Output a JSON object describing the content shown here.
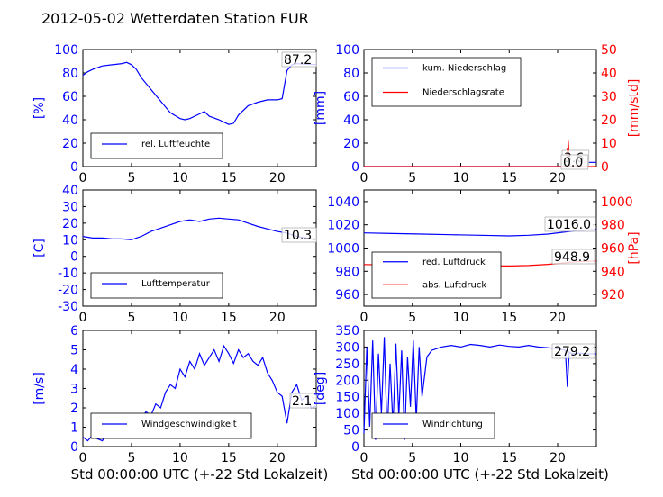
{
  "title": "2012-05-02 Wetterdaten Station FUR",
  "chart_data": [
    {
      "id": "humidity",
      "type": "line",
      "xlim": [
        0,
        24
      ],
      "ylim": [
        0,
        100
      ],
      "xticks": [
        0,
        5,
        10,
        15,
        20
      ],
      "yticks": [
        0,
        20,
        40,
        60,
        80,
        100
      ],
      "ylabel": "[%]",
      "ylabel_color": "#0000ff",
      "annotation": "87.2",
      "legend_placement": "lower-left",
      "series": [
        {
          "name": "rel. Luftfeuchte",
          "color": "#0000ff",
          "x": [
            0,
            0.5,
            1,
            2,
            3,
            4,
            4.5,
            5,
            5.5,
            6,
            7,
            8,
            9,
            10,
            10.5,
            11,
            12,
            12.5,
            13,
            14,
            15,
            15.5,
            16,
            17,
            18,
            19,
            20,
            20.5,
            21,
            21.5,
            22,
            23,
            24
          ],
          "y": [
            78,
            81,
            83,
            86,
            87,
            88,
            89,
            87,
            83,
            76,
            66,
            56,
            46,
            41,
            40,
            41,
            45,
            47,
            43,
            40,
            36,
            37,
            44,
            52,
            55,
            57,
            57,
            58,
            82,
            87,
            88,
            87.5,
            87.2
          ]
        }
      ]
    },
    {
      "id": "precip",
      "type": "line",
      "xlim": [
        0,
        24
      ],
      "ylim": [
        0,
        100
      ],
      "y2lim": [
        0,
        50
      ],
      "xticks": [
        0,
        5,
        10,
        15,
        20
      ],
      "yticks": [
        0,
        20,
        40,
        60,
        80,
        100
      ],
      "y2ticks": [
        0,
        10,
        20,
        30,
        40,
        50
      ],
      "ylabel": "[mm]",
      "y2label": "[mm/std]",
      "ylabel_color": "#0000ff",
      "y2label_color": "#ff0000",
      "annotations": [
        "3.6",
        "0.0"
      ],
      "legend_placement": "upper-left",
      "series": [
        {
          "name": "kum. Niederschlag",
          "color": "#0000ff",
          "axis": "left",
          "x": [
            0,
            20.8,
            21,
            21.3,
            24
          ],
          "y": [
            0,
            0,
            1.5,
            3.6,
            3.6
          ]
        },
        {
          "name": "Niederschlagsrate",
          "color": "#ff0000",
          "axis": "right",
          "x": [
            0,
            20.9,
            21,
            21.05,
            21.1,
            21.2,
            21.3,
            24
          ],
          "y": [
            0,
            0,
            8,
            2,
            11,
            4,
            0,
            0
          ]
        }
      ]
    },
    {
      "id": "temperature",
      "type": "line",
      "xlim": [
        0,
        24
      ],
      "ylim": [
        -30,
        40
      ],
      "xticks": [
        0,
        5,
        10,
        15,
        20
      ],
      "yticks": [
        -30,
        -20,
        -10,
        0,
        10,
        20,
        30,
        40
      ],
      "ylabel": "[C]",
      "ylabel_color": "#0000ff",
      "annotation": "10.3",
      "legend_placement": "lower-left",
      "series": [
        {
          "name": "Lufttemperatur",
          "color": "#0000ff",
          "x": [
            0,
            1,
            2,
            3,
            4,
            5,
            6,
            7,
            8,
            9,
            10,
            11,
            12,
            13,
            14,
            15,
            16,
            17,
            18,
            19,
            20,
            21,
            22,
            23,
            24
          ],
          "y": [
            12,
            11,
            11,
            10.5,
            10.5,
            10,
            12,
            15,
            17,
            19,
            21,
            22,
            21,
            22.5,
            23,
            22.5,
            22,
            20,
            18,
            16.5,
            15,
            14,
            12,
            11,
            10.3
          ]
        }
      ]
    },
    {
      "id": "pressure",
      "type": "line",
      "xlim": [
        0,
        24
      ],
      "ylim": [
        950,
        1050
      ],
      "y2lim": [
        910,
        1010
      ],
      "xticks": [
        0,
        5,
        10,
        15,
        20
      ],
      "yticks": [
        960,
        980,
        1000,
        1020,
        1040
      ],
      "y2ticks": [
        920,
        940,
        960,
        980,
        1000
      ],
      "ylabel": "",
      "y2label": "[hPa]",
      "y2label_color": "#ff0000",
      "annotations": [
        "1016.0",
        "948.9"
      ],
      "legend_placement": "lower-left",
      "series": [
        {
          "name": "red. Luftdruck",
          "color": "#0000ff",
          "axis": "left",
          "x": [
            0,
            3,
            6,
            9,
            12,
            15,
            17,
            19,
            21,
            22,
            24
          ],
          "y": [
            1013,
            1012.5,
            1012,
            1011.5,
            1011,
            1010.5,
            1011,
            1012,
            1014,
            1015,
            1016
          ]
        },
        {
          "name": "abs. Luftdruck",
          "color": "#ff0000",
          "axis": "right",
          "x": [
            0,
            3,
            6,
            9,
            12,
            15,
            17,
            19,
            21,
            22,
            24
          ],
          "y": [
            945.8,
            945.4,
            945.2,
            945,
            944.8,
            944.6,
            945,
            946,
            947.5,
            948.2,
            948.9
          ]
        }
      ]
    },
    {
      "id": "windspeed",
      "type": "line",
      "xlim": [
        0,
        24
      ],
      "ylim": [
        0,
        6
      ],
      "xticks": [
        0,
        5,
        10,
        15,
        20
      ],
      "yticks": [
        0,
        1,
        2,
        3,
        4,
        5,
        6
      ],
      "ylabel": "[m/s]",
      "ylabel_color": "#0000ff",
      "xlabel": "Std 00:00:00 UTC (+-22 Std Lokalzeit)",
      "annotation": "2.1",
      "legend_placement": "lower-left",
      "series": [
        {
          "name": "Windgeschwindigkeit",
          "color": "#0000ff",
          "x": [
            0,
            0.5,
            1,
            1.5,
            2,
            2.5,
            3,
            3.5,
            4,
            4.5,
            5,
            5.5,
            6,
            6.5,
            7,
            7.5,
            8,
            8.5,
            9,
            9.5,
            10,
            10.5,
            11,
            11.5,
            12,
            12.5,
            13,
            13.5,
            14,
            14.5,
            15,
            15.5,
            16,
            16.5,
            17,
            17.5,
            18,
            18.5,
            19,
            19.5,
            20,
            20.5,
            21,
            21.5,
            22,
            22.5,
            23,
            23.5,
            24
          ],
          "y": [
            0.5,
            0.3,
            0.6,
            0.4,
            0.3,
            0.7,
            0.5,
            0.8,
            1.0,
            0.7,
            0.9,
            1.2,
            1.5,
            1.8,
            1.6,
            2.2,
            2.0,
            2.8,
            3.2,
            3.0,
            4.0,
            3.6,
            4.4,
            4.0,
            4.8,
            4.2,
            4.6,
            5.0,
            4.4,
            5.2,
            4.8,
            4.3,
            5.0,
            4.6,
            4.8,
            4.4,
            4.2,
            4.6,
            3.8,
            3.4,
            2.8,
            2.6,
            1.2,
            2.8,
            3.2,
            2.4,
            2.6,
            2.0,
            2.1
          ]
        }
      ]
    },
    {
      "id": "winddir",
      "type": "line",
      "xlim": [
        0,
        24
      ],
      "ylim": [
        0,
        350
      ],
      "xticks": [
        0,
        5,
        10,
        15,
        20
      ],
      "yticks": [
        0,
        50,
        100,
        150,
        200,
        250,
        300,
        350
      ],
      "ylabel": "[deg]",
      "ylabel_color": "#0000ff",
      "xlabel": "Std 00:00:00 UTC (+-22 Std Lokalzeit)",
      "annotation": "279.2",
      "legend_placement": "lower-left",
      "series": [
        {
          "name": "Windrichtung",
          "color": "#0000ff",
          "x": [
            0,
            0.3,
            0.6,
            0.9,
            1.2,
            1.5,
            1.8,
            2.1,
            2.4,
            2.7,
            3.0,
            3.3,
            3.6,
            3.9,
            4.2,
            4.5,
            4.8,
            5.1,
            5.4,
            5.7,
            6.0,
            6.5,
            7,
            8,
            9,
            10,
            11,
            12,
            13,
            14,
            15,
            16,
            17,
            18,
            19,
            20,
            20.8,
            21,
            21.2,
            21.5,
            22,
            23,
            24
          ],
          "y": [
            40,
            300,
            60,
            320,
            20,
            280,
            100,
            330,
            30,
            250,
            60,
            310,
            90,
            290,
            20,
            270,
            120,
            320,
            80,
            300,
            150,
            270,
            290,
            300,
            305,
            300,
            308,
            305,
            300,
            306,
            302,
            300,
            305,
            300,
            298,
            295,
            290,
            180,
            285,
            280,
            282,
            280,
            279.2
          ]
        }
      ]
    }
  ]
}
